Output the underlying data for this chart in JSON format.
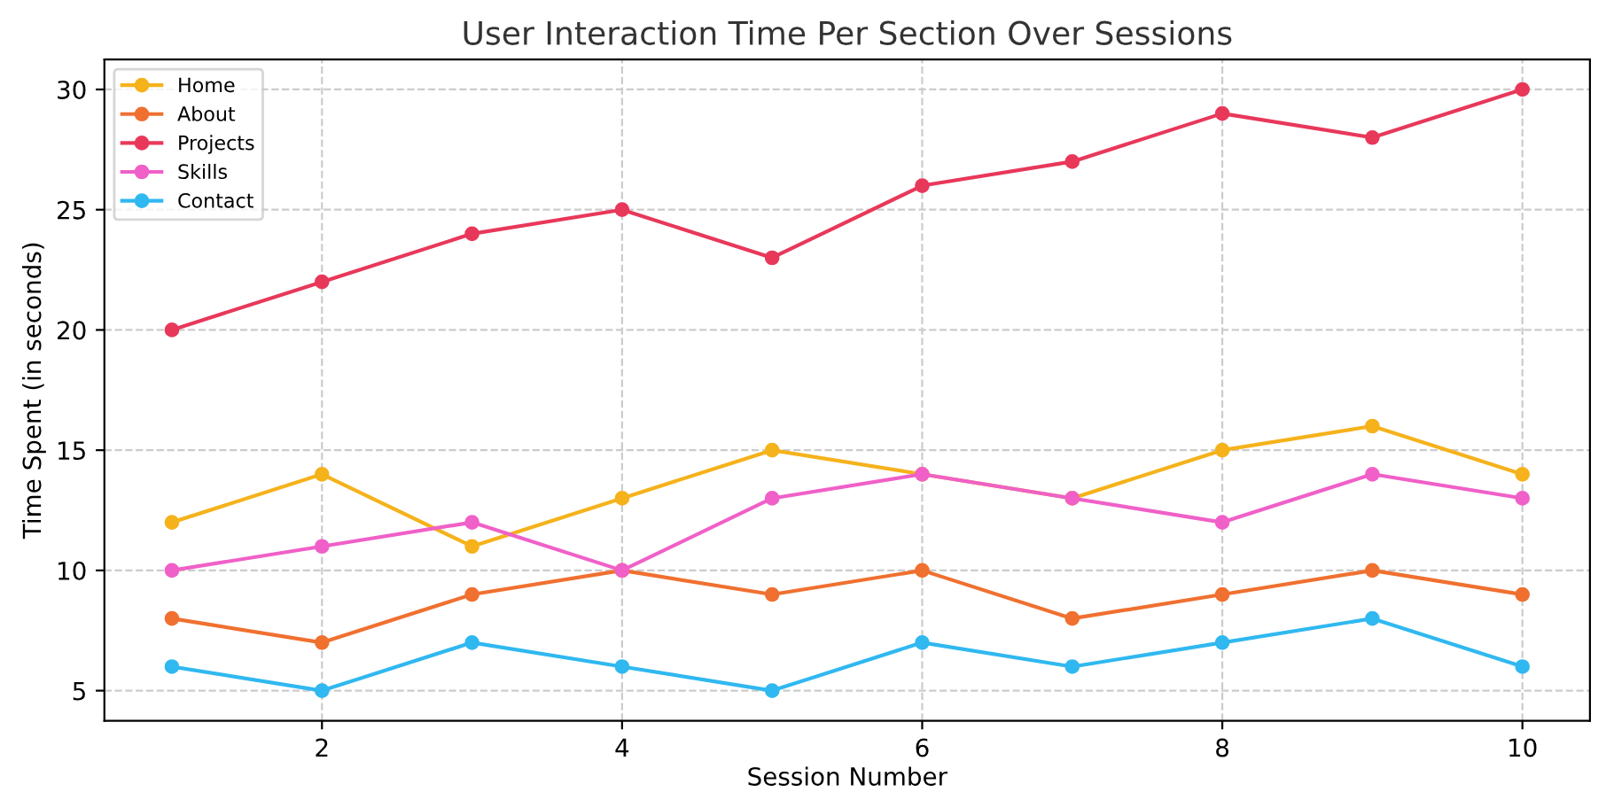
{
  "chart_data": {
    "type": "line",
    "title": "User Interaction Time Per Section Over Sessions",
    "xlabel": "Session Number",
    "ylabel": "Time Spent (in seconds)",
    "x": [
      1,
      2,
      3,
      4,
      5,
      6,
      7,
      8,
      9,
      10
    ],
    "series": [
      {
        "name": "Home",
        "color": "#f5b21b",
        "values": [
          12,
          14,
          11,
          13,
          15,
          14,
          13,
          15,
          16,
          14
        ]
      },
      {
        "name": "About",
        "color": "#f07030",
        "values": [
          8,
          7,
          9,
          10,
          9,
          10,
          8,
          9,
          10,
          9
        ]
      },
      {
        "name": "Projects",
        "color": "#e8385a",
        "values": [
          20,
          22,
          24,
          25,
          23,
          26,
          27,
          29,
          28,
          30
        ]
      },
      {
        "name": "Skills",
        "color": "#f060c8",
        "values": [
          10,
          11,
          12,
          10,
          13,
          14,
          13,
          12,
          14,
          13
        ]
      },
      {
        "name": "Contact",
        "color": "#30b8f0",
        "values": [
          6,
          5,
          7,
          6,
          5,
          7,
          6,
          7,
          8,
          6
        ]
      }
    ],
    "xlim": [
      0.55,
      10.45
    ],
    "xticks": [
      2,
      4,
      6,
      8,
      10
    ],
    "ylim": [
      3.75,
      31.25
    ],
    "yticks": [
      5,
      10,
      15,
      20,
      25,
      30
    ],
    "grid": true,
    "legend": "top left",
    "marker": "circle",
    "line_style": "solid"
  }
}
